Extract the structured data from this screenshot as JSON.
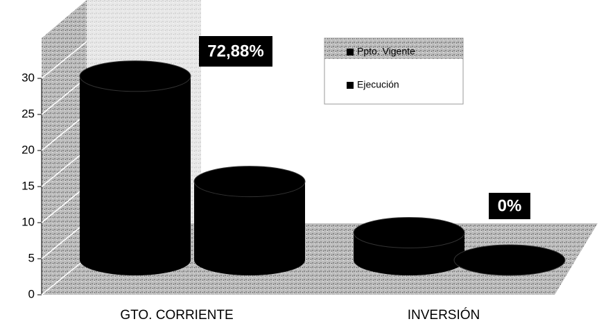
{
  "chart_data": {
    "type": "bar3d-cylinder",
    "categories": [
      "GTO. CORRIENTE",
      "INVERSIÓN"
    ],
    "series": [
      {
        "name": "Ppto. Vigente",
        "color": "#000000",
        "values": [
          25.5,
          3.8
        ]
      },
      {
        "name": "Ejecución",
        "color": "#000000",
        "values": [
          10.9,
          0
        ]
      }
    ],
    "annotations": [
      "72,88%",
      "0%"
    ],
    "ylim": [
      0,
      30
    ],
    "yticks": [
      0,
      5,
      10,
      15,
      20,
      25,
      30
    ],
    "grid": true,
    "legend": "top-right"
  }
}
